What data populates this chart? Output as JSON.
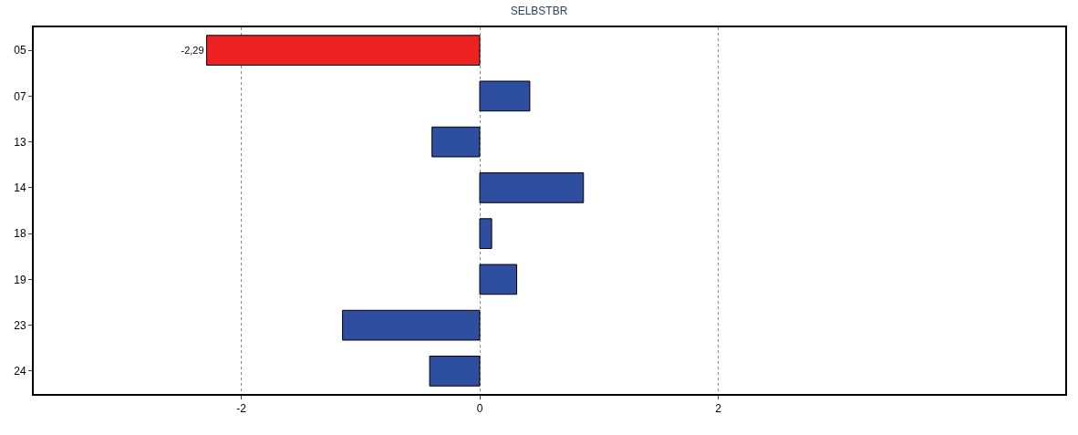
{
  "chart_data": {
    "type": "bar",
    "orientation": "horizontal",
    "title": "SELBSTBR",
    "categories": [
      "05",
      "07",
      "13",
      "14",
      "18",
      "19",
      "23",
      "24"
    ],
    "values": [
      -2.29,
      0.42,
      -0.4,
      0.87,
      0.1,
      0.31,
      -1.15,
      -0.42
    ],
    "colors": [
      "#ee2222",
      "#2e4fa0",
      "#2e4fa0",
      "#2e4fa0",
      "#2e4fa0",
      "#2e4fa0",
      "#2e4fa0",
      "#2e4fa0"
    ],
    "value_labels": [
      "-2,29",
      null,
      null,
      null,
      null,
      null,
      null,
      null
    ],
    "xlim": [
      -3.74,
      4.91
    ],
    "xticks": [
      -2,
      0,
      2
    ],
    "grid": "x"
  }
}
